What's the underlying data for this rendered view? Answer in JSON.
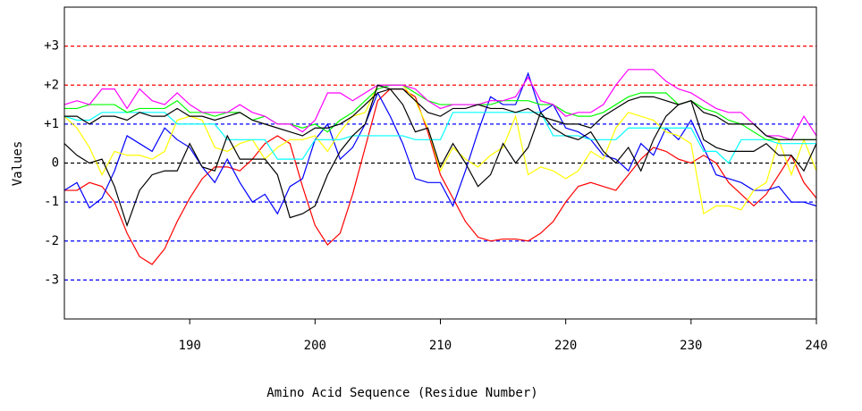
{
  "chart_data": {
    "type": "line",
    "y_label": "Values",
    "x_label": "Amino Acid Sequence (Residue Number)",
    "xlim": [
      180,
      240
    ],
    "ylim": [
      -4,
      4
    ],
    "xticks": [
      190,
      200,
      210,
      220,
      230,
      240
    ],
    "yticks": [
      {
        "value": 3,
        "label": "+3"
      },
      {
        "value": 2,
        "label": "+2"
      },
      {
        "value": 1,
        "label": "+1"
      },
      0,
      -1,
      -2,
      -3
    ],
    "grid": true,
    "grid_colors": [
      "#ff0000",
      "#ff0000",
      "#0000ff",
      "#000000",
      "#0000ff",
      "#0000ff",
      "#0000ff"
    ],
    "x": [
      180,
      181,
      182,
      183,
      184,
      185,
      186,
      187,
      188,
      189,
      190,
      191,
      192,
      193,
      194,
      195,
      196,
      197,
      198,
      199,
      200,
      201,
      202,
      203,
      204,
      205,
      206,
      207,
      208,
      209,
      210,
      211,
      212,
      213,
      214,
      215,
      216,
      217,
      218,
      219,
      220,
      221,
      222,
      223,
      224,
      225,
      226,
      227,
      228,
      229,
      230,
      231,
      232,
      233,
      234,
      235,
      236,
      237,
      238,
      239,
      240
    ],
    "series": [
      {
        "color": "#ff0000",
        "values": [
          -0.7,
          -0.7,
          -0.5,
          -0.6,
          -1.0,
          -1.8,
          -2.4,
          -2.6,
          -2.2,
          -1.5,
          -0.9,
          -0.4,
          -0.1,
          -0.1,
          -0.2,
          0.1,
          0.5,
          0.7,
          0.5,
          -0.6,
          -1.6,
          -2.1,
          -1.8,
          -0.8,
          0.4,
          1.6,
          1.9,
          1.9,
          1.7,
          0.8,
          -0.3,
          -0.9,
          -1.5,
          -1.9,
          -2.0,
          -1.95,
          -1.95,
          -2.0,
          -1.8,
          -1.5,
          -1.0,
          -0.6,
          -0.5,
          -0.6,
          -0.7,
          -0.3,
          0.1,
          0.4,
          0.3,
          0.1,
          0.0,
          0.2,
          0.0,
          -0.5,
          -0.8,
          -1.1,
          -0.8,
          -0.3,
          0.2,
          -0.5,
          -0.9
        ]
      },
      {
        "color": "#0000ff",
        "values": [
          -0.7,
          -0.5,
          -1.15,
          -0.9,
          -0.2,
          0.7,
          0.5,
          0.3,
          0.9,
          0.6,
          0.4,
          -0.1,
          -0.5,
          0.1,
          -0.5,
          -1.0,
          -0.8,
          -1.3,
          -0.6,
          -0.4,
          0.6,
          1.0,
          0.1,
          0.4,
          1.0,
          1.8,
          1.2,
          0.5,
          -0.4,
          -0.5,
          -0.5,
          -1.1,
          -0.2,
          0.8,
          1.7,
          1.5,
          1.5,
          2.3,
          1.3,
          1.5,
          0.9,
          0.8,
          0.6,
          0.2,
          0.1,
          -0.2,
          0.5,
          0.2,
          0.9,
          0.6,
          1.1,
          0.4,
          -0.3,
          -0.4,
          -0.5,
          -0.7,
          -0.7,
          -0.6,
          -1.0,
          -1.0,
          -1.1
        ]
      },
      {
        "color": "#ffff00",
        "values": [
          1.2,
          0.9,
          0.4,
          -0.3,
          0.3,
          0.2,
          0.2,
          0.1,
          0.3,
          1.1,
          1.2,
          1.1,
          0.4,
          0.3,
          0.5,
          0.6,
          0.1,
          0.4,
          0.6,
          0.6,
          0.7,
          0.3,
          0.8,
          1.2,
          1.3,
          2.0,
          2.0,
          2.0,
          1.6,
          0.9,
          -0.2,
          0.4,
          0.1,
          -0.1,
          0.2,
          0.4,
          1.2,
          -0.3,
          -0.1,
          -0.2,
          -0.4,
          -0.2,
          0.3,
          0.1,
          0.9,
          1.3,
          1.2,
          1.1,
          0.8,
          0.7,
          0.5,
          -1.3,
          -1.1,
          -1.1,
          -1.2,
          -0.7,
          -0.5,
          0.6,
          -0.3,
          0.6,
          -0.2
        ]
      },
      {
        "color": "#00ffff",
        "values": [
          1.2,
          1.1,
          1.1,
          1.3,
          1.3,
          1.3,
          1.3,
          1.3,
          1.3,
          1.0,
          1.0,
          1.0,
          1.0,
          0.6,
          0.6,
          0.6,
          0.6,
          0.1,
          0.1,
          0.1,
          0.6,
          0.6,
          0.6,
          0.7,
          0.7,
          0.7,
          0.7,
          0.7,
          0.6,
          0.6,
          0.6,
          1.3,
          1.3,
          1.3,
          1.3,
          1.3,
          1.3,
          1.3,
          1.3,
          0.7,
          0.7,
          0.7,
          0.6,
          0.6,
          0.6,
          0.9,
          0.9,
          0.9,
          0.9,
          0.9,
          0.9,
          0.3,
          0.3,
          0.0,
          0.6,
          0.6,
          0.6,
          0.5,
          0.5,
          0.5,
          0.5
        ]
      },
      {
        "color": "#00ff00",
        "values": [
          1.4,
          1.4,
          1.5,
          1.5,
          1.5,
          1.3,
          1.4,
          1.4,
          1.4,
          1.6,
          1.3,
          1.3,
          1.2,
          1.3,
          1.3,
          1.1,
          1.2,
          1.0,
          1.0,
          0.9,
          1.0,
          0.8,
          1.1,
          1.3,
          1.6,
          1.9,
          2.0,
          2.0,
          1.8,
          1.6,
          1.5,
          1.5,
          1.5,
          1.5,
          1.5,
          1.6,
          1.6,
          1.6,
          1.5,
          1.5,
          1.3,
          1.2,
          1.2,
          1.3,
          1.5,
          1.7,
          1.8,
          1.8,
          1.8,
          1.5,
          1.6,
          1.4,
          1.3,
          1.1,
          1.0,
          0.8,
          0.6,
          0.6,
          0.6,
          0.6,
          0.6
        ]
      },
      {
        "color": "#ff00ff",
        "values": [
          1.5,
          1.6,
          1.5,
          1.9,
          1.9,
          1.4,
          1.9,
          1.6,
          1.5,
          1.8,
          1.5,
          1.3,
          1.3,
          1.3,
          1.5,
          1.3,
          1.2,
          1.0,
          1.0,
          0.8,
          1.1,
          1.8,
          1.8,
          1.6,
          1.8,
          2.0,
          2.0,
          2.0,
          1.9,
          1.6,
          1.4,
          1.5,
          1.5,
          1.5,
          1.6,
          1.6,
          1.7,
          2.2,
          1.6,
          1.5,
          1.2,
          1.3,
          1.3,
          1.5,
          2.0,
          2.4,
          2.4,
          2.4,
          2.1,
          1.9,
          1.8,
          1.6,
          1.4,
          1.3,
          1.3,
          1.0,
          0.7,
          0.7,
          0.6,
          1.2,
          0.7
        ]
      },
      {
        "color": "#000000",
        "values": [
          1.2,
          1.2,
          1.0,
          1.2,
          1.2,
          1.1,
          1.3,
          1.2,
          1.2,
          1.4,
          1.2,
          1.2,
          1.1,
          1.2,
          1.3,
          1.1,
          1.0,
          0.9,
          0.8,
          0.7,
          0.9,
          0.9,
          1.0,
          1.2,
          1.5,
          1.8,
          1.9,
          1.9,
          1.6,
          1.3,
          1.2,
          1.4,
          1.4,
          1.5,
          1.4,
          1.4,
          1.3,
          1.4,
          1.2,
          1.1,
          1.0,
          1.0,
          0.9,
          1.2,
          1.4,
          1.6,
          1.7,
          1.7,
          1.6,
          1.5,
          1.6,
          1.3,
          1.2,
          1.0,
          1.0,
          1.0,
          0.7,
          0.6,
          0.6,
          0.6,
          0.6
        ]
      },
      {
        "color": "#000000",
        "values": [
          0.5,
          0.2,
          0.0,
          0.1,
          -0.6,
          -1.6,
          -0.7,
          -0.3,
          -0.2,
          -0.2,
          0.5,
          -0.1,
          -0.2,
          0.7,
          0.1,
          0.1,
          0.1,
          -0.3,
          -1.4,
          -1.3,
          -1.1,
          -0.3,
          0.3,
          0.7,
          1.0,
          2.0,
          1.9,
          1.5,
          0.8,
          0.9,
          -0.1,
          0.5,
          0.0,
          -0.6,
          -0.3,
          0.5,
          0.0,
          0.4,
          1.3,
          0.9,
          0.7,
          0.6,
          0.8,
          0.3,
          0.0,
          0.4,
          -0.2,
          0.6,
          1.2,
          1.5,
          1.6,
          0.6,
          0.4,
          0.3,
          0.3,
          0.3,
          0.5,
          0.2,
          0.2,
          -0.2,
          0.5
        ]
      }
    ]
  }
}
